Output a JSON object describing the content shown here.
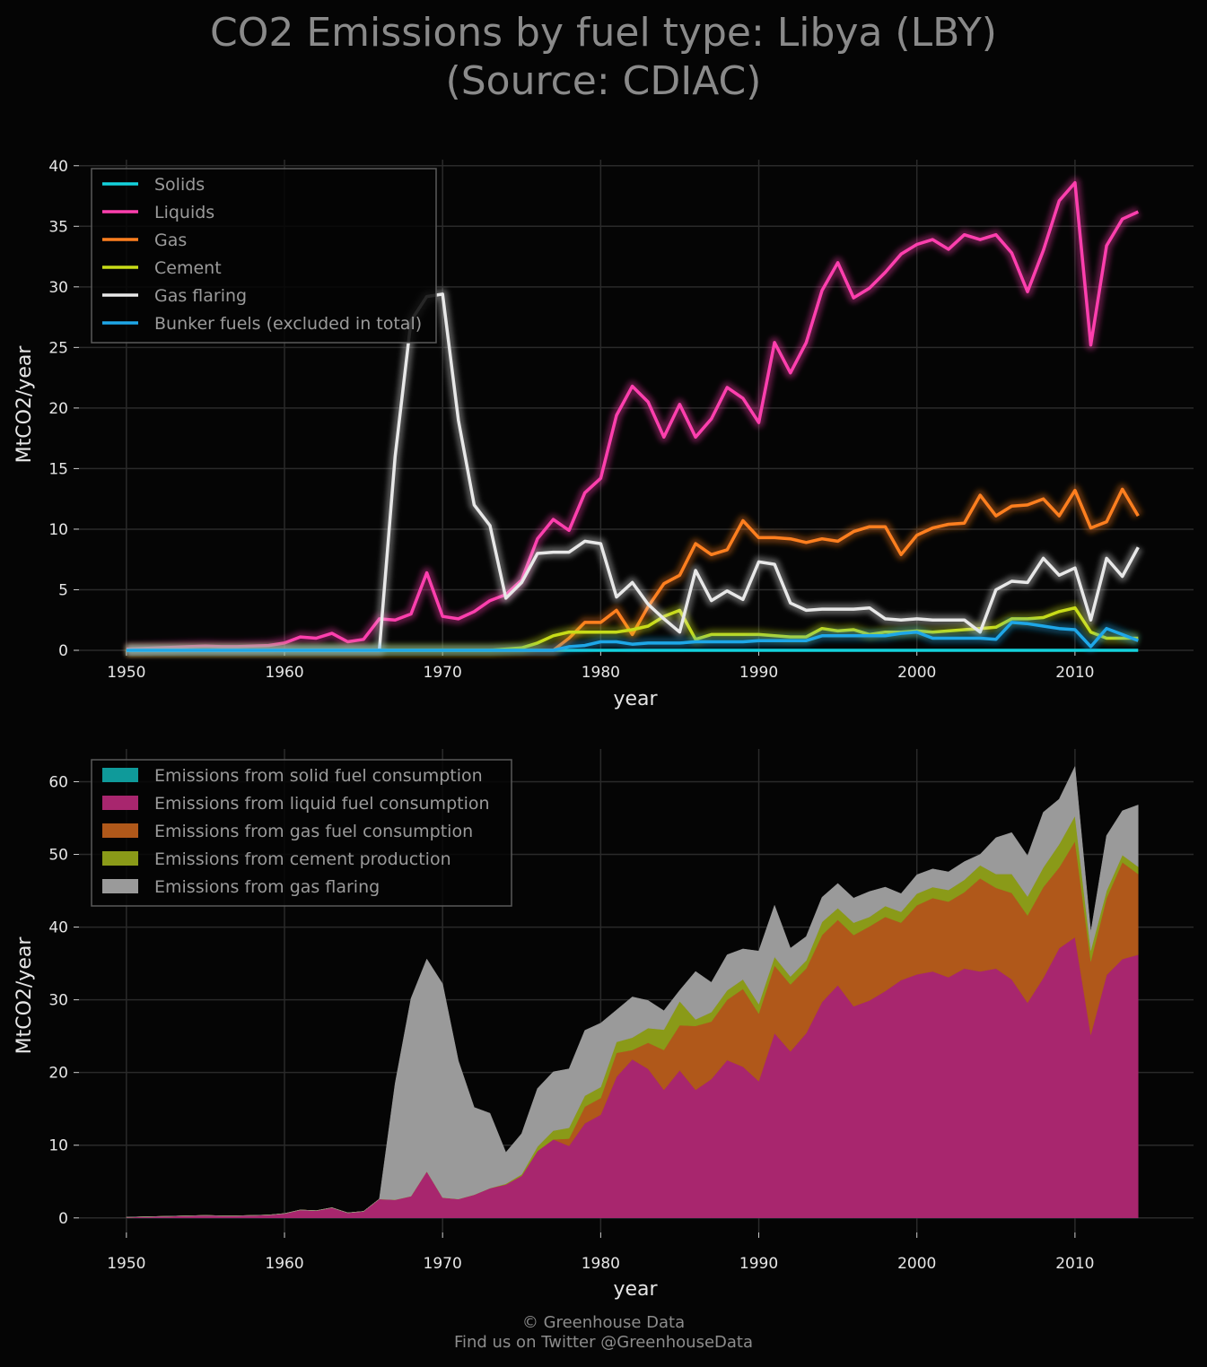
{
  "title": {
    "line1": "CO2 Emissions by fuel type: Libya (LBY)",
    "line2": "(Source: CDIAC)"
  },
  "footer": {
    "line1": "© Greenhouse Data",
    "line2": "Find us on Twitter @GreenhouseData"
  },
  "chart_data": [
    {
      "type": "line",
      "xlabel": "year",
      "ylabel": "MtCO2/year",
      "xlim": [
        1947,
        2017.5
      ],
      "ylim": [
        0,
        40.5
      ],
      "xticks": [
        1950,
        1960,
        1970,
        1980,
        1990,
        2000,
        2010
      ],
      "yticks": [
        0,
        5,
        10,
        15,
        20,
        25,
        30,
        35,
        40
      ],
      "grid": true,
      "legend_position": "top-left",
      "x_start": 1950,
      "series": [
        {
          "name": "Solids",
          "color": "#14d2dc",
          "values": [
            0,
            0,
            0,
            0,
            0,
            0,
            0,
            0,
            0,
            0,
            0,
            0,
            0,
            0,
            0,
            0,
            0,
            0,
            0,
            0,
            0,
            0,
            0,
            0,
            0,
            0,
            0,
            0,
            0,
            0,
            0,
            0,
            0,
            0,
            0,
            0,
            0,
            0,
            0,
            0,
            0,
            0,
            0,
            0,
            0,
            0,
            0,
            0,
            0,
            0,
            0,
            0,
            0,
            0,
            0,
            0,
            0,
            0,
            0,
            0,
            0,
            0,
            0,
            0,
            0
          ]
        },
        {
          "name": "Liquids",
          "color": "#ff3fae",
          "values": [
            0.1,
            0.15,
            0.2,
            0.25,
            0.3,
            0.35,
            0.3,
            0.3,
            0.35,
            0.4,
            0.6,
            1.1,
            1.0,
            1.4,
            0.7,
            0.9,
            2.6,
            2.5,
            3.0,
            6.4,
            2.8,
            2.6,
            3.2,
            4.1,
            4.6,
            5.8,
            9.2,
            10.8,
            9.9,
            13.0,
            14.2,
            19.4,
            21.8,
            20.5,
            17.6,
            20.3,
            17.6,
            19.1,
            21.7,
            20.8,
            18.8,
            25.4,
            22.9,
            25.4,
            29.7,
            32.0,
            29.1,
            29.9,
            31.2,
            32.7,
            33.5,
            33.9,
            33.1,
            34.3,
            33.9,
            34.3,
            32.8,
            29.6,
            33.0,
            37.1,
            38.6,
            25.2,
            33.4,
            35.6,
            36.2
          ]
        },
        {
          "name": "Gas",
          "color": "#ff7f1f",
          "values": [
            0,
            0,
            0,
            0,
            0,
            0,
            0,
            0,
            0,
            0,
            0,
            0,
            0,
            0,
            0,
            0,
            0,
            0,
            0,
            0,
            0,
            0,
            0,
            0,
            0,
            0,
            0,
            0,
            1.0,
            2.3,
            2.3,
            3.3,
            1.3,
            3.6,
            5.5,
            6.2,
            8.8,
            7.9,
            8.3,
            10.7,
            9.3,
            9.3,
            9.2,
            8.9,
            9.2,
            9.0,
            9.8,
            10.2,
            10.2,
            7.9,
            9.5,
            10.1,
            10.4,
            10.5,
            12.8,
            11.1,
            11.9,
            12.0,
            12.5,
            11.1,
            13.2,
            10.1,
            10.6,
            13.3,
            11.1
          ]
        },
        {
          "name": "Cement",
          "color": "#c8dc18",
          "values": [
            0,
            0,
            0,
            0,
            0,
            0,
            0,
            0,
            0,
            0,
            0,
            0,
            0,
            0,
            0,
            0,
            0,
            0,
            0,
            0,
            0,
            0,
            0,
            0,
            0.1,
            0.2,
            0.6,
            1.2,
            1.5,
            1.5,
            1.5,
            1.5,
            1.7,
            2.0,
            2.8,
            3.3,
            0.9,
            1.3,
            1.3,
            1.3,
            1.3,
            1.2,
            1.1,
            1.1,
            1.8,
            1.6,
            1.7,
            1.3,
            1.5,
            1.5,
            1.6,
            1.5,
            1.6,
            1.7,
            1.8,
            1.9,
            2.6,
            2.6,
            2.7,
            3.2,
            3.5,
            1.5,
            1.0,
            1.0,
            1.0
          ]
        },
        {
          "name": "Gas flaring",
          "color": "#e8e8e8",
          "values": [
            0,
            0,
            0,
            0,
            0,
            0,
            0,
            0,
            0,
            0,
            0,
            0,
            0,
            0,
            0,
            0,
            0,
            16.0,
            27.2,
            29.2,
            29.4,
            19.0,
            12.0,
            10.3,
            4.3,
            5.6,
            8.0,
            8.1,
            8.1,
            9.0,
            8.8,
            4.4,
            5.6,
            3.8,
            2.6,
            1.5,
            6.6,
            4.1,
            4.9,
            4.2,
            7.3,
            7.1,
            3.9,
            3.3,
            3.4,
            3.4,
            3.4,
            3.5,
            2.6,
            2.5,
            2.6,
            2.5,
            2.5,
            2.5,
            1.5,
            5.0,
            5.7,
            5.6,
            7.6,
            6.2,
            6.8,
            2.5,
            7.6,
            6.1,
            8.5
          ]
        },
        {
          "name": "Bunker fuels (excluded in total)",
          "color": "#1ea7e8",
          "values": [
            0,
            0,
            0,
            0,
            0,
            0,
            0,
            0,
            0,
            0,
            0,
            0,
            0,
            0,
            0,
            0,
            0,
            0,
            0,
            0,
            0,
            0,
            0,
            0,
            0,
            0,
            0,
            0,
            0.3,
            0.4,
            0.7,
            0.7,
            0.5,
            0.6,
            0.6,
            0.6,
            0.7,
            0.7,
            0.7,
            0.7,
            0.8,
            0.8,
            0.8,
            0.8,
            1.2,
            1.2,
            1.2,
            1.2,
            1.2,
            1.4,
            1.5,
            1.0,
            1.0,
            1.0,
            1.0,
            0.9,
            2.3,
            2.2,
            2.0,
            1.8,
            1.7,
            0.3,
            1.8,
            1.3,
            0.8
          ]
        }
      ]
    },
    {
      "type": "area",
      "stacked": true,
      "xlabel": "year",
      "ylabel": "MtCO2/year",
      "xlim": [
        1947,
        2017.5
      ],
      "ylim": [
        -2,
        64.5
      ],
      "xticks": [
        1950,
        1960,
        1970,
        1980,
        1990,
        2000,
        2010
      ],
      "yticks": [
        0,
        10,
        20,
        30,
        40,
        50,
        60
      ],
      "grid": true,
      "legend_position": "top-left",
      "x_start": 1950,
      "series": [
        {
          "name": "Emissions from solid fuel consumption",
          "color": "#0f9a9a",
          "values": [
            0,
            0,
            0,
            0,
            0,
            0,
            0,
            0,
            0,
            0,
            0,
            0,
            0,
            0,
            0,
            0,
            0,
            0,
            0,
            0,
            0,
            0,
            0,
            0,
            0,
            0,
            0,
            0,
            0,
            0,
            0,
            0,
            0,
            0,
            0,
            0,
            0,
            0,
            0,
            0,
            0,
            0,
            0,
            0,
            0,
            0,
            0,
            0,
            0,
            0,
            0,
            0,
            0,
            0,
            0,
            0,
            0,
            0,
            0,
            0,
            0,
            0,
            0,
            0,
            0
          ]
        },
        {
          "name": "Emissions from liquid fuel consumption",
          "color": "#a8266e",
          "values": [
            0.1,
            0.15,
            0.2,
            0.25,
            0.3,
            0.35,
            0.3,
            0.3,
            0.35,
            0.4,
            0.6,
            1.1,
            1.0,
            1.4,
            0.7,
            0.9,
            2.6,
            2.5,
            3.0,
            6.4,
            2.8,
            2.6,
            3.2,
            4.1,
            4.6,
            5.8,
            9.2,
            10.8,
            9.9,
            13.0,
            14.2,
            19.4,
            21.8,
            20.5,
            17.6,
            20.3,
            17.6,
            19.1,
            21.7,
            20.8,
            18.8,
            25.4,
            22.9,
            25.4,
            29.7,
            32.0,
            29.1,
            29.9,
            31.2,
            32.7,
            33.5,
            33.9,
            33.1,
            34.3,
            33.9,
            34.3,
            32.8,
            29.6,
            33.0,
            37.1,
            38.6,
            25.2,
            33.4,
            35.6,
            36.2
          ]
        },
        {
          "name": "Emissions from gas fuel consumption",
          "color": "#b0581a",
          "values": [
            0,
            0,
            0,
            0,
            0,
            0,
            0,
            0,
            0,
            0,
            0,
            0,
            0,
            0,
            0,
            0,
            0,
            0,
            0,
            0,
            0,
            0,
            0,
            0,
            0,
            0,
            0,
            0,
            1.0,
            2.3,
            2.3,
            3.3,
            1.3,
            3.6,
            5.5,
            6.2,
            8.8,
            7.9,
            8.3,
            10.7,
            9.3,
            9.3,
            9.2,
            8.9,
            9.2,
            9.0,
            9.8,
            10.2,
            10.2,
            7.9,
            9.5,
            10.1,
            10.4,
            10.5,
            12.8,
            11.1,
            11.9,
            12.0,
            12.5,
            11.1,
            13.2,
            10.1,
            10.6,
            13.3,
            11.1
          ]
        },
        {
          "name": "Emissions from cement production",
          "color": "#8a9a18",
          "values": [
            0,
            0,
            0,
            0,
            0,
            0,
            0,
            0,
            0,
            0,
            0,
            0,
            0,
            0,
            0,
            0,
            0,
            0,
            0,
            0,
            0,
            0,
            0,
            0,
            0.1,
            0.2,
            0.6,
            1.2,
            1.5,
            1.5,
            1.5,
            1.5,
            1.7,
            2.0,
            2.8,
            3.3,
            0.9,
            1.3,
            1.3,
            1.3,
            1.3,
            1.2,
            1.1,
            1.1,
            1.8,
            1.6,
            1.7,
            1.3,
            1.5,
            1.5,
            1.6,
            1.5,
            1.6,
            1.7,
            1.8,
            1.9,
            2.6,
            2.6,
            2.7,
            3.2,
            3.5,
            1.5,
            1.0,
            1.0,
            1.0
          ]
        },
        {
          "name": "Emissions from gas flaring",
          "color": "#9a9a9a",
          "values": [
            0,
            0,
            0,
            0,
            0,
            0,
            0,
            0,
            0,
            0,
            0,
            0,
            0,
            0,
            0,
            0,
            0,
            16.0,
            27.2,
            29.2,
            29.4,
            19.0,
            12.0,
            10.3,
            4.3,
            5.6,
            8.0,
            8.1,
            8.1,
            9.0,
            8.8,
            4.4,
            5.6,
            3.8,
            2.6,
            1.5,
            6.6,
            4.1,
            4.9,
            4.2,
            7.3,
            7.1,
            3.9,
            3.3,
            3.4,
            3.4,
            3.4,
            3.5,
            2.6,
            2.5,
            2.6,
            2.5,
            2.5,
            2.5,
            1.5,
            5.0,
            5.7,
            5.6,
            7.6,
            6.2,
            6.8,
            2.5,
            7.6,
            6.1,
            8.5
          ]
        }
      ]
    }
  ]
}
